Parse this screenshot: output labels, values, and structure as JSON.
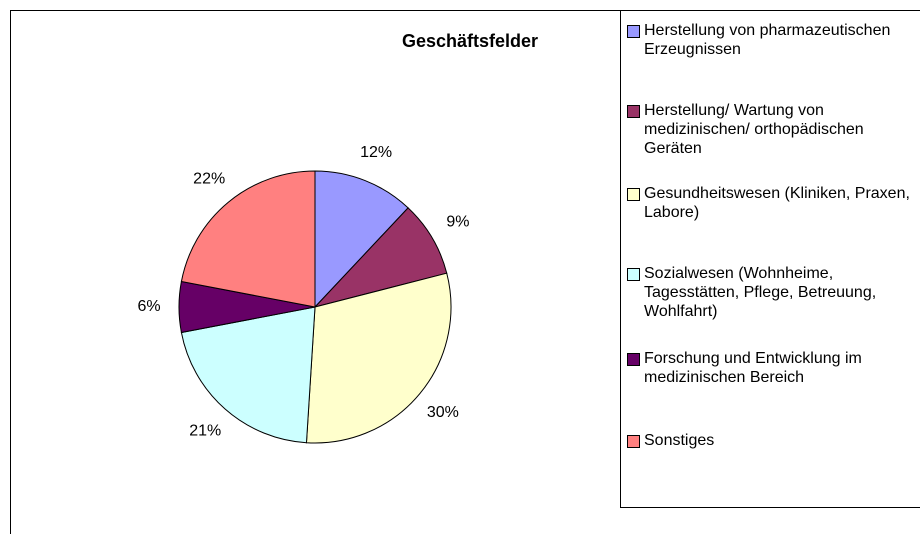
{
  "chart_data": {
    "type": "pie",
    "title": "Geschäftsfelder",
    "categories": [
      "Herstellung von pharmazeutischen Erzeugnissen",
      "Herstellung/ Wartung von medizinischen/ orthopädischen Geräten",
      "Gesundheitswesen (Kliniken, Praxen, Labore)",
      "Sozialwesen (Wohnheime, Tagesstätten, Pflege, Betreuung, Wohlfahrt)",
      "Forschung und Entwicklung im medizinischen Bereich",
      "Sonstiges"
    ],
    "values": [
      12,
      9,
      30,
      21,
      6,
      22
    ],
    "value_labels": [
      "12%",
      "9%",
      "30%",
      "21%",
      "6%",
      "22%"
    ],
    "colors": [
      "#9999ff",
      "#993366",
      "#ffffcc",
      "#ccffff",
      "#660066",
      "#ff8080"
    ],
    "legend": "right"
  }
}
